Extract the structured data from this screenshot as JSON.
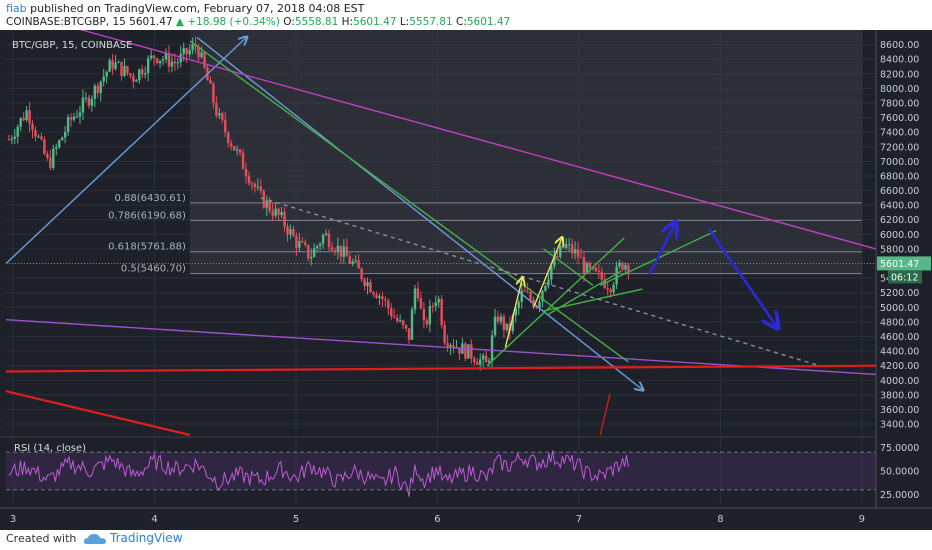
{
  "header": {
    "author": "fiab",
    "published": "published on TradingView.com, February 07, 2018 04:08 EST",
    "symbol": "COINBASE:BTCGBP, 15",
    "last": "5601.47",
    "change": "+18.98 (+0.34%)",
    "open_label": "O:",
    "open": "5558.81",
    "high_label": "H:",
    "high": "5601.47",
    "low_label": "L:",
    "low": "5557.81",
    "close_label": "C:",
    "close": "5601.47"
  },
  "footer": {
    "created_with": "Created with",
    "brand": "TradingView"
  },
  "chart_data": {
    "type": "candlestick",
    "title": "BTC/GBP, 15, COINBASE",
    "x_ticks": [
      "3",
      "4",
      "5",
      "6",
      "7",
      "8",
      "9"
    ],
    "x_tick_values": [
      3,
      4,
      5,
      6,
      7,
      8,
      9
    ],
    "xlim": [
      2.95,
      9.1
    ],
    "ylim": [
      3250,
      8800
    ],
    "y_ticks": [
      3400,
      3600,
      3800,
      4000,
      4200,
      4400,
      4600,
      4800,
      5000,
      5200,
      5400,
      5600,
      5800,
      6000,
      6200,
      6400,
      6600,
      6800,
      7000,
      7200,
      7400,
      7600,
      7800,
      8000,
      8200,
      8400,
      8600
    ],
    "y_tick_labels": [
      "3400.00",
      "3600.00",
      "3800.00",
      "4000.00",
      "4200.00",
      "4400.00",
      "4600.00",
      "4800.00",
      "5000.00",
      "5200.00",
      "5400.00",
      "5600.00",
      "5800.00",
      "6000.00",
      "6200.00",
      "6400.00",
      "6600.00",
      "6800.00",
      "7000.00",
      "7200.00",
      "7400.00",
      "7600.00",
      "7800.00",
      "8000.00",
      "8200.00",
      "8400.00",
      "8600.00"
    ],
    "price_path": [
      [
        2.97,
        7300
      ],
      [
        3.1,
        7700
      ],
      [
        3.25,
        6950
      ],
      [
        3.4,
        7550
      ],
      [
        3.55,
        7900
      ],
      [
        3.7,
        8350
      ],
      [
        3.85,
        8150
      ],
      [
        4.0,
        8450
      ],
      [
        4.15,
        8350
      ],
      [
        4.3,
        8600
      ],
      [
        4.45,
        7600
      ],
      [
        4.6,
        7050
      ],
      [
        4.75,
        6500
      ],
      [
        4.9,
        6200
      ],
      [
        5.0,
        5900
      ],
      [
        5.1,
        5700
      ],
      [
        5.2,
        6000
      ],
      [
        5.3,
        5800
      ],
      [
        5.4,
        5600
      ],
      [
        5.5,
        5350
      ],
      [
        5.6,
        5150
      ],
      [
        5.7,
        4850
      ],
      [
        5.8,
        4600
      ],
      [
        5.85,
        5400
      ],
      [
        5.9,
        4700
      ],
      [
        6.0,
        5200
      ],
      [
        6.05,
        4600
      ],
      [
        6.15,
        4450
      ],
      [
        6.25,
        4350
      ],
      [
        6.35,
        4200
      ],
      [
        6.42,
        4900
      ],
      [
        6.5,
        4650
      ],
      [
        6.6,
        5200
      ],
      [
        6.7,
        5050
      ],
      [
        6.8,
        5550
      ],
      [
        6.9,
        5850
      ],
      [
        7.0,
        5700
      ],
      [
        7.05,
        5500
      ],
      [
        7.15,
        5400
      ],
      [
        7.22,
        5300
      ],
      [
        7.3,
        5600
      ],
      [
        7.35,
        5601
      ]
    ],
    "last_price": "5601.47",
    "countdown": "06:12",
    "fib_levels": [
      {
        "label": "0.88(6430.61)",
        "value": 6430.61
      },
      {
        "label": "0.786(6190.68)",
        "value": 6190.68
      },
      {
        "label": "0.618(5761.88)",
        "value": 5761.88
      },
      {
        "label": "0.5(5460.70)",
        "value": 5460.7
      }
    ],
    "trendlines": [
      {
        "color": "#6b9bd8",
        "from": [
          2.95,
          5600
        ],
        "to": [
          4.65,
          8700
        ],
        "arrow": true
      },
      {
        "color": "#6b9bd8",
        "from": [
          4.3,
          8700
        ],
        "to": [
          7.45,
          3870
        ],
        "arrow": true
      },
      {
        "color": "#c23fc2",
        "from": [
          3.3,
          8900
        ],
        "to": [
          9.1,
          5800
        ],
        "arrow": false
      },
      {
        "color": "#9e52c9",
        "from": [
          2.95,
          4830
        ],
        "to": [
          9.1,
          4080
        ],
        "arrow": false
      },
      {
        "color": "#e01e1e",
        "from": [
          2.95,
          4120
        ],
        "to": [
          9.1,
          4200
        ],
        "arrow": false
      },
      {
        "color": "#e01e1e",
        "from": [
          2.95,
          3850
        ],
        "to": [
          4.25,
          3250
        ],
        "arrow": false
      },
      {
        "color": "#45b045",
        "from": [
          4.25,
          8650
        ],
        "to": [
          7.35,
          4250
        ],
        "arrow": false
      },
      {
        "color": "#45b045",
        "from": [
          6.35,
          4200
        ],
        "to": [
          7.32,
          5950
        ],
        "arrow": false
      },
      {
        "color": "#45b045",
        "from": [
          6.75,
          4950
        ],
        "to": [
          7.45,
          5250
        ],
        "arrow": false
      },
      {
        "color": "#45b045",
        "from": [
          6.75,
          5800
        ],
        "to": [
          7.1,
          5300
        ],
        "arrow": false
      },
      {
        "color": "#45b045",
        "from": [
          7.15,
          5300
        ],
        "to": [
          7.97,
          6050
        ],
        "arrow": false
      },
      {
        "color": "#45b045",
        "from": [
          6.78,
          4900
        ],
        "to": [
          7.3,
          5500
        ],
        "arrow": false
      },
      {
        "color": "#8a8f99",
        "from": [
          4.75,
          6500
        ],
        "to": [
          8.7,
          4200
        ],
        "arrow": false,
        "dashed": true
      },
      {
        "color": "#e8e85a",
        "from": [
          6.48,
          4450
        ],
        "to": [
          6.6,
          5400
        ],
        "arrow": true
      },
      {
        "color": "#e8e85a",
        "from": [
          6.68,
          5000
        ],
        "to": [
          6.88,
          5950
        ],
        "arrow": true
      },
      {
        "color": "#2a2ad8",
        "from": [
          7.5,
          5450
        ],
        "to": [
          7.68,
          6150
        ],
        "arrow": true
      },
      {
        "color": "#2a2ad8",
        "from": [
          7.92,
          6070
        ],
        "to": [
          8.4,
          4730
        ],
        "arrow": true
      },
      {
        "color": "#cc2020",
        "from": [
          7.15,
          3250
        ],
        "to": [
          7.22,
          3820
        ],
        "arrow": false
      }
    ],
    "rsi": {
      "label": "RSI (14, close)",
      "ylim": [
        15,
        85
      ],
      "y_ticks": [
        25,
        50,
        75
      ],
      "y_tick_labels": [
        "25.0000",
        "50.0000",
        "75.0000"
      ],
      "upper_band": 70,
      "lower_band": 30,
      "path": [
        [
          2.97,
          48
        ],
        [
          3.1,
          55
        ],
        [
          3.25,
          40
        ],
        [
          3.4,
          58
        ],
        [
          3.55,
          50
        ],
        [
          3.7,
          62
        ],
        [
          3.85,
          45
        ],
        [
          4.0,
          60
        ],
        [
          4.15,
          52
        ],
        [
          4.3,
          58
        ],
        [
          4.45,
          38
        ],
        [
          4.6,
          46
        ],
        [
          4.75,
          40
        ],
        [
          4.9,
          52
        ],
        [
          5.0,
          42
        ],
        [
          5.1,
          56
        ],
        [
          5.2,
          48
        ],
        [
          5.3,
          38
        ],
        [
          5.4,
          50
        ],
        [
          5.5,
          44
        ],
        [
          5.6,
          36
        ],
        [
          5.7,
          48
        ],
        [
          5.8,
          28
        ],
        [
          5.85,
          55
        ],
        [
          5.9,
          40
        ],
        [
          6.0,
          52
        ],
        [
          6.05,
          38
        ],
        [
          6.15,
          45
        ],
        [
          6.25,
          50
        ],
        [
          6.35,
          42
        ],
        [
          6.42,
          60
        ],
        [
          6.5,
          55
        ],
        [
          6.6,
          65
        ],
        [
          6.7,
          58
        ],
        [
          6.8,
          64
        ],
        [
          6.9,
          62
        ],
        [
          7.0,
          55
        ],
        [
          7.05,
          48
        ],
        [
          7.15,
          44
        ],
        [
          7.22,
          50
        ],
        [
          7.3,
          58
        ],
        [
          7.35,
          60
        ]
      ]
    }
  }
}
